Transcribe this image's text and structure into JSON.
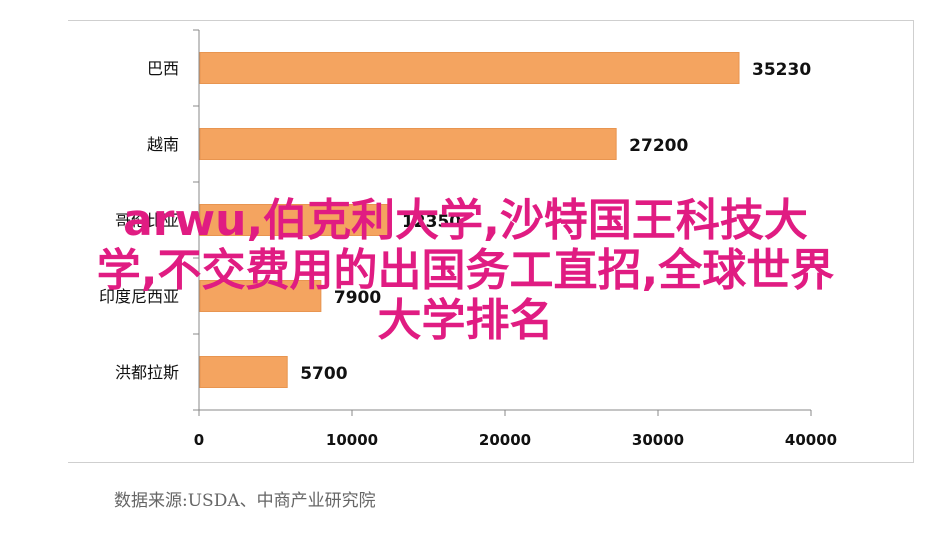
{
  "chart_data": {
    "type": "bar",
    "orientation": "horizontal",
    "categories": [
      "巴西",
      "越南",
      "哥伦比亚",
      "印度尼西亚",
      "洪都拉斯"
    ],
    "values": [
      35230,
      27200,
      12350,
      7900,
      5700
    ],
    "value_labels": [
      "35230",
      "27200",
      "12350",
      "7900",
      "5700"
    ],
    "xlim": [
      0,
      40000
    ],
    "x_ticks": [
      "0",
      "10000",
      "20000",
      "30000",
      "40000"
    ],
    "grid": false,
    "bar_color": "#f4a460"
  },
  "source_text": "数据来源:USDA、中商产业研究院",
  "overlay": {
    "line1": "arwu,伯克利大学,沙特国王科技大",
    "line2": "学,不交费用的出国务工直招,全球世界",
    "line3": "大学排名",
    "color": "#e01c82"
  }
}
